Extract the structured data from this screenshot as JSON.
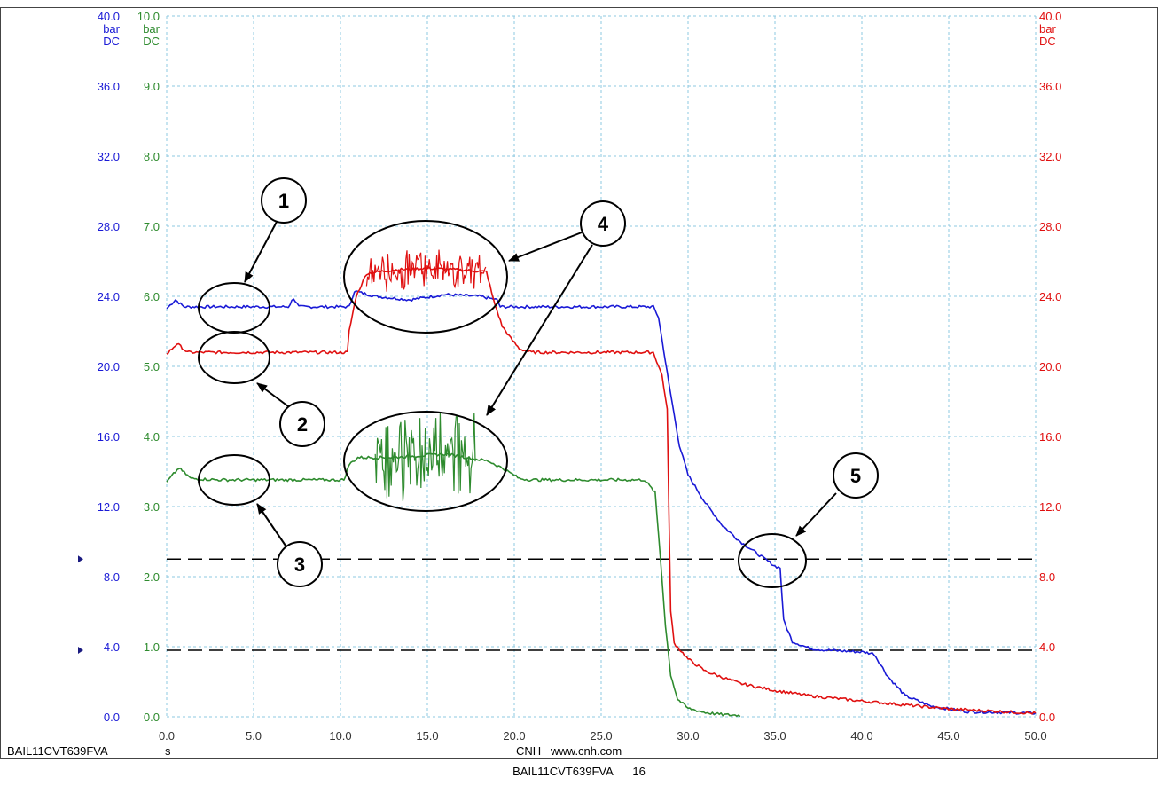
{
  "chart_data": {
    "type": "line",
    "x_unit": "s",
    "xlim": [
      0,
      50
    ],
    "x_ticks": [
      "0.0",
      "5.0",
      "10.0",
      "15.0",
      "20.0",
      "25.0",
      "30.0",
      "35.0",
      "40.0",
      "45.0",
      "50.0"
    ],
    "axes": {
      "left_blue": {
        "ticks": [
          "0.0",
          "4.0",
          "8.0",
          "12.0",
          "16.0",
          "20.0",
          "24.0",
          "28.0",
          "32.0",
          "36.0",
          "40.0"
        ],
        "unit": "bar",
        "mode": "DC",
        "color": "#1a1ad6",
        "range": [
          0,
          40
        ]
      },
      "left_green": {
        "ticks": [
          "0.0",
          "1.0",
          "2.0",
          "3.0",
          "4.0",
          "5.0",
          "6.0",
          "7.0",
          "8.0",
          "9.0",
          "10.0"
        ],
        "unit": "bar",
        "mode": "DC",
        "color": "#2e8b2e",
        "range": [
          0,
          10
        ]
      },
      "right_red": {
        "ticks": [
          "0.0",
          "4.0",
          "8.0",
          "12.0",
          "16.0",
          "20.0",
          "24.0",
          "28.0",
          "32.0",
          "36.0",
          "40.0"
        ],
        "unit": "bar",
        "mode": "DC",
        "color": "#e01010",
        "range": [
          0,
          40
        ]
      }
    },
    "series": [
      {
        "axis": "left_blue",
        "color": "#1a1ad6",
        "x": [
          0,
          0.5,
          1,
          3,
          7,
          7.3,
          7.6,
          10.5,
          10.8,
          12,
          14,
          16,
          18,
          19,
          19.2,
          20,
          26,
          28,
          28.3,
          28.9,
          29.5,
          30,
          31,
          32,
          33,
          34,
          35,
          35.3,
          35.5,
          36,
          37,
          38,
          40,
          40.7,
          41.5,
          42.5,
          44,
          46,
          48,
          50
        ],
        "y": [
          23.3,
          23.8,
          23.4,
          23.4,
          23.4,
          23.9,
          23.4,
          23.4,
          24.3,
          24.0,
          23.8,
          24.1,
          24.0,
          23.8,
          23.4,
          23.4,
          23.4,
          23.4,
          22.8,
          19,
          15.5,
          13.8,
          12.2,
          10.9,
          10.0,
          9.3,
          8.6,
          8.5,
          5.5,
          4.3,
          3.9,
          3.8,
          3.7,
          3.6,
          2.3,
          1.2,
          0.6,
          0.3,
          0.25,
          0.2
        ]
      },
      {
        "axis": "right_red",
        "color": "#e01010",
        "x": [
          0,
          0.6,
          1.2,
          5,
          10.4,
          10.5,
          10.9,
          11.5,
          13,
          15,
          17,
          18.4,
          18.8,
          19.3,
          19.8,
          20.3,
          21,
          26,
          28,
          28.5,
          28.8,
          29.0,
          29.2,
          30,
          31,
          33,
          35,
          37,
          40,
          45,
          50
        ],
        "y": [
          20.7,
          21.3,
          20.8,
          20.8,
          20.8,
          22.0,
          24.0,
          25.3,
          25.5,
          25.6,
          25.5,
          25.4,
          23.8,
          22.3,
          21.6,
          21.0,
          20.8,
          20.8,
          20.8,
          19.5,
          17.5,
          6,
          4.2,
          3.3,
          2.6,
          1.9,
          1.5,
          1.2,
          0.9,
          0.45,
          0.2
        ]
      },
      {
        "axis": "left_green",
        "color": "#2e8b2e",
        "x": [
          0,
          0.7,
          1.4,
          3,
          10.2,
          10.5,
          11,
          13,
          16,
          18.5,
          19.3,
          20.3,
          21,
          27.5,
          28.1,
          28.4,
          28.7,
          29.0,
          29.4,
          30,
          31,
          32,
          33
        ],
        "y": [
          3.35,
          3.55,
          3.4,
          3.38,
          3.38,
          3.6,
          3.7,
          3.7,
          3.75,
          3.65,
          3.55,
          3.4,
          3.38,
          3.38,
          3.2,
          2.3,
          1.3,
          0.6,
          0.25,
          0.12,
          0.06,
          0.03,
          0.02
        ]
      }
    ],
    "noise_bands": [
      {
        "series": "right_red",
        "x": [
          11.5,
          18.4
        ],
        "spread": 1.2
      },
      {
        "series": "left_green",
        "x": [
          12.0,
          17.8
        ],
        "spread": 0.7
      }
    ],
    "reference_lines": [
      9.0,
      3.8
    ],
    "callouts": [
      "1",
      "2",
      "3",
      "4",
      "5"
    ],
    "grid": true,
    "bottom_left_label": "BAIL11CVT639FVA",
    "bottom_center_label": "CNH   www.cnh.com"
  },
  "caption": {
    "id": "BAIL11CVT639FVA",
    "number": "16"
  }
}
